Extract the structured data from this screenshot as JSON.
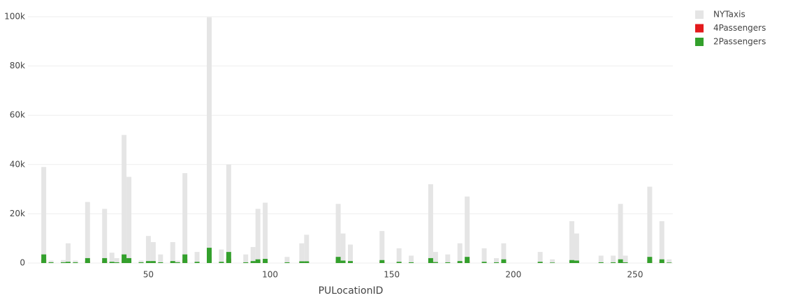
{
  "chart_data": {
    "type": "bar",
    "barmode": "overlay",
    "x_label": "PULocationID",
    "x": [
      7,
      10,
      15,
      17,
      20,
      25,
      32,
      35,
      37,
      40,
      42,
      47,
      50,
      52,
      55,
      60,
      62,
      65,
      70,
      75,
      80,
      83,
      90,
      93,
      95,
      98,
      107,
      113,
      115,
      128,
      130,
      133,
      146,
      153,
      158,
      166,
      168,
      173,
      178,
      181,
      188,
      193,
      196,
      211,
      216,
      224,
      226,
      236,
      241,
      244,
      246,
      256,
      261,
      264
    ],
    "series": [
      {
        "name": "NYTaxis",
        "color": "#e5e5e5",
        "values": [
          39000,
          1000,
          1200,
          8000,
          1000,
          24800,
          22000,
          4200,
          2000,
          52000,
          35000,
          1000,
          11000,
          8500,
          3500,
          8500,
          1000,
          36500,
          4500,
          99800,
          5500,
          40000,
          3500,
          6500,
          22000,
          24500,
          2500,
          8000,
          11500,
          24000,
          12000,
          7500,
          13000,
          6000,
          3000,
          32000,
          4500,
          3500,
          8000,
          27000,
          6000,
          2000,
          8000,
          4500,
          1500,
          17000,
          12000,
          3000,
          3000,
          24000,
          3000,
          31000,
          17000,
          1500
        ]
      },
      {
        "name": "4Passengers",
        "color": "#e31a1c",
        "values": [
          1400,
          100,
          100,
          200,
          100,
          800,
          800,
          200,
          100,
          1400,
          800,
          100,
          300,
          300,
          100,
          300,
          100,
          1400,
          200,
          2500,
          200,
          1800,
          100,
          300,
          600,
          700,
          100,
          300,
          300,
          1000,
          400,
          300,
          500,
          200,
          100,
          800,
          200,
          100,
          300,
          1000,
          200,
          100,
          600,
          200,
          100,
          500,
          400,
          100,
          100,
          600,
          100,
          1000,
          600,
          100
        ]
      },
      {
        "name": "2Passengers",
        "color": "#33a02c",
        "values": [
          3500,
          300,
          300,
          500,
          300,
          2000,
          2000,
          500,
          300,
          3500,
          2000,
          300,
          800,
          800,
          300,
          800,
          300,
          3500,
          500,
          6200,
          500,
          4500,
          300,
          800,
          1500,
          1700,
          300,
          700,
          700,
          2500,
          1000,
          800,
          1200,
          500,
          300,
          2000,
          400,
          300,
          800,
          2500,
          500,
          300,
          1500,
          500,
          200,
          1200,
          1000,
          300,
          300,
          1500,
          300,
          2500,
          1500,
          200
        ]
      }
    ],
    "xlim": [
      0.5,
      265.5
    ],
    "xticks": [
      50,
      100,
      150,
      200,
      250
    ],
    "ylim": [
      0,
      100000
    ],
    "yticks": [
      0,
      {
        "value": 20000,
        "label": "20k"
      },
      {
        "value": 40000,
        "label": "40k"
      },
      {
        "value": 60000,
        "label": "60k"
      },
      {
        "value": 80000,
        "label": "80k"
      },
      {
        "value": 100000,
        "label": "100k"
      }
    ],
    "grid": true,
    "legend": "top-right"
  }
}
